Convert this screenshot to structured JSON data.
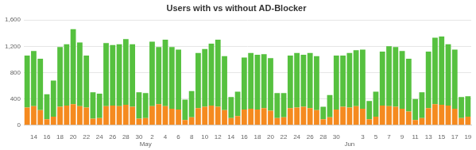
{
  "chart_data": {
    "type": "bar",
    "title": "Users with vs without AD-Blocker",
    "categories": [
      null,
      "14",
      null,
      "16",
      null,
      "18",
      null,
      "20",
      null,
      "22",
      null,
      "24",
      null,
      "26",
      null,
      "28",
      null,
      "30",
      "May",
      "2",
      null,
      "4",
      null,
      "6",
      null,
      "8",
      null,
      "10",
      null,
      "12",
      null,
      "14",
      null,
      "16",
      null,
      "18",
      null,
      "20",
      null,
      "22",
      null,
      "24",
      null,
      "26",
      null,
      "28",
      null,
      "30",
      null,
      "Jun",
      null,
      "3",
      null,
      "5",
      null,
      "7",
      null,
      "9",
      null,
      "11",
      null,
      "13",
      null,
      "15",
      null,
      "17",
      null,
      "19"
    ],
    "series": [
      {
        "color": "#f58a1f",
        "values": [
          270,
          290,
          230,
          90,
          130,
          280,
          300,
          320,
          290,
          270,
          100,
          110,
          290,
          300,
          290,
          310,
          280,
          100,
          110,
          290,
          320,
          290,
          250,
          240,
          80,
          120,
          260,
          280,
          300,
          280,
          230,
          110,
          140,
          240,
          250,
          240,
          260,
          220,
          110,
          120,
          260,
          270,
          280,
          260,
          230,
          90,
          120,
          240,
          280,
          270,
          290,
          250,
          90,
          130,
          300,
          290,
          280,
          250,
          210,
          80,
          110,
          260,
          320,
          310,
          300,
          250,
          110,
          130
        ]
      },
      {
        "color": "#56c13f",
        "values": [
          790,
          840,
          780,
          380,
          550,
          910,
          930,
          1140,
          970,
          790,
          400,
          370,
          960,
          920,
          940,
          1000,
          950,
          400,
          380,
          980,
          870,
          1010,
          940,
          910,
          310,
          400,
          840,
          880,
          940,
          1020,
          820,
          320,
          370,
          790,
          850,
          830,
          820,
          800,
          380,
          370,
          800,
          830,
          790,
          840,
          820,
          190,
          340,
          820,
          780,
          830,
          850,
          900,
          280,
          380,
          820,
          910,
          910,
          880,
          800,
          320,
          390,
          860,
          1010,
          1040,
          930,
          900,
          320,
          310
        ]
      }
    ],
    "ylim": [
      0,
      1600
    ],
    "yticks": [
      0,
      400,
      800,
      {
        "value": 1200,
        "label": "1,200"
      },
      {
        "value": 1600,
        "label": "1,600"
      }
    ],
    "stacked": true,
    "grid": true
  }
}
